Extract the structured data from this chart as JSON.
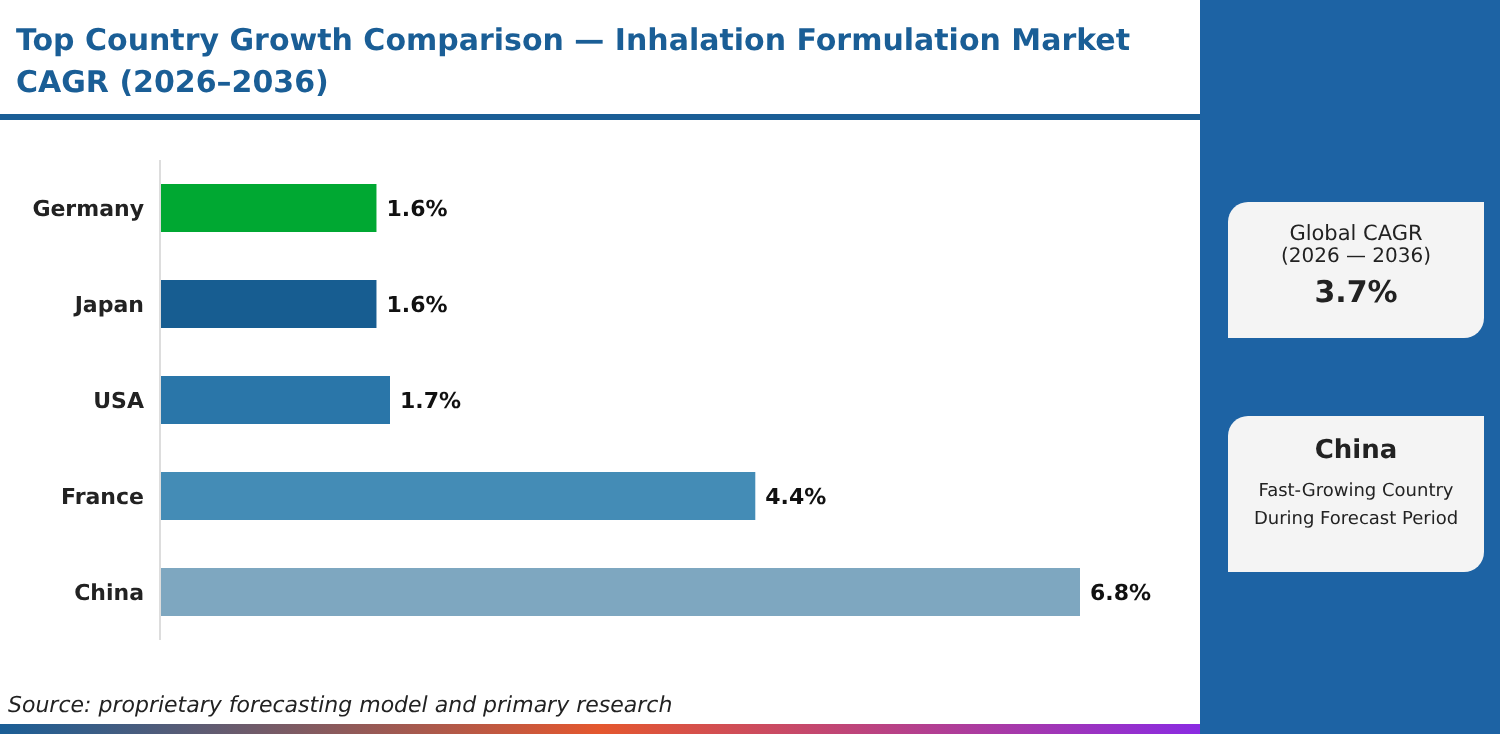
{
  "chart_data": {
    "type": "bar",
    "orientation": "horizontal",
    "title": "Top Country Growth Comparison — Inhalation Formulation Market CAGR (2026–2036)",
    "categories": [
      "Germany",
      "Japan",
      "USA",
      "France",
      "China"
    ],
    "values": [
      1.6,
      1.6,
      1.7,
      4.4,
      6.8
    ],
    "value_labels": [
      "1.6%",
      "1.6%",
      "1.7%",
      "4.4%",
      "6.8%"
    ],
    "colors": [
      "#00a832",
      "#175d91",
      "#2a76a9",
      "#448cb6",
      "#7ea7c0"
    ],
    "grid": false,
    "legend": false,
    "annotations": [
      "Source: proprietary forecasting model and primary research",
      "Global CAGR",
      "(2026 — 2036)",
      "3.7%",
      "China",
      "Fast-Growing Country During Forecast Period"
    ]
  }
}
